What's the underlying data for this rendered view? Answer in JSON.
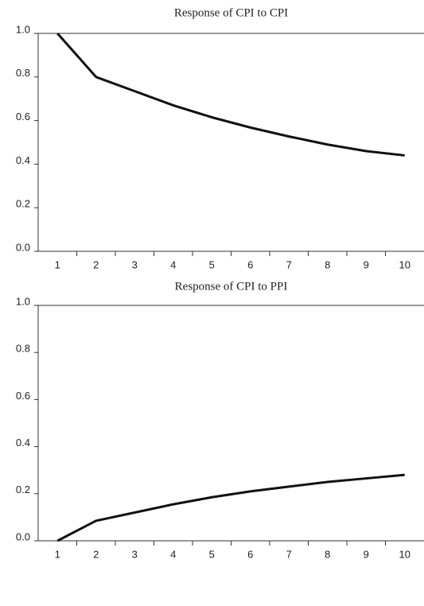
{
  "chart_data": [
    {
      "type": "line",
      "title": "Response of CPI to CPI",
      "categories": [
        "1",
        "2",
        "3",
        "4",
        "5",
        "6",
        "7",
        "8",
        "9",
        "10"
      ],
      "series": [
        {
          "color": "#111111",
          "values": [
            1.0,
            0.8,
            0.735,
            0.67,
            0.615,
            0.568,
            0.527,
            0.49,
            0.46,
            0.44
          ]
        }
      ],
      "ylim": [
        0,
        1
      ],
      "yticks": [
        {
          "value": 0,
          "label": "0.0"
        },
        0.2,
        0.4,
        0.6,
        0.8,
        {
          "value": 1,
          "label": "1.0"
        }
      ]
    },
    {
      "type": "line",
      "title": "Response of CPI to PPI",
      "categories": [
        "1",
        "2",
        "3",
        "4",
        "5",
        "6",
        "7",
        "8",
        "9",
        "10"
      ],
      "series": [
        {
          "color": "#111111",
          "values": [
            0,
            0.085,
            0.12,
            0.155,
            0.185,
            0.21,
            0.23,
            0.25,
            0.265,
            0.28
          ]
        }
      ],
      "ylim": [
        0,
        1
      ],
      "yticks": [
        {
          "value": 0,
          "label": "0.0"
        },
        0.2,
        0.4,
        0.6,
        0.8,
        {
          "value": 1,
          "label": "1.0"
        }
      ]
    }
  ]
}
